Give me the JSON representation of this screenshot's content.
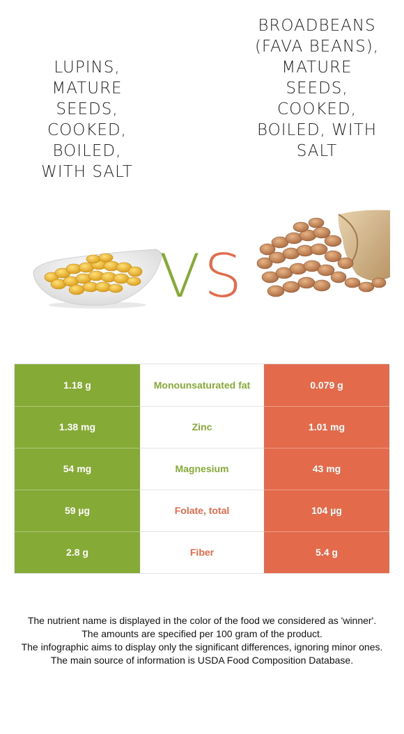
{
  "food_left": {
    "title": "Lupins, mature seeds, cooked, boiled, with salt",
    "color": "#86aa36",
    "image_icon": "lupin-bowl-icon"
  },
  "food_right": {
    "title": "Broadbeans (fava beans), mature seeds, cooked, boiled, with salt",
    "color": "#e36b4c",
    "image_icon": "fava-beans-sack-icon"
  },
  "vs": {
    "v": "V",
    "s": "S"
  },
  "comparison": [
    {
      "nutrient": "Monounsaturated fat",
      "left": "1.18 g",
      "right": "0.079 g",
      "winner": "left"
    },
    {
      "nutrient": "Zinc",
      "left": "1.38 mg",
      "right": "1.01 mg",
      "winner": "left"
    },
    {
      "nutrient": "Magnesium",
      "left": "54 mg",
      "right": "43 mg",
      "winner": "left"
    },
    {
      "nutrient": "Folate, total",
      "left": "59 µg",
      "right": "104 µg",
      "winner": "right"
    },
    {
      "nutrient": "Fiber",
      "left": "2.8 g",
      "right": "5.4 g",
      "winner": "right"
    }
  ],
  "footer": {
    "line1": "The nutrient name is displayed in the color of the food we considered as 'winner'.",
    "line2": "The amounts are specified per 100 gram of the product.",
    "line3": "The infographic aims to display only the significant differences, ignoring minor ones.",
    "line4": "The main source of information is USDA Food Composition Database."
  }
}
